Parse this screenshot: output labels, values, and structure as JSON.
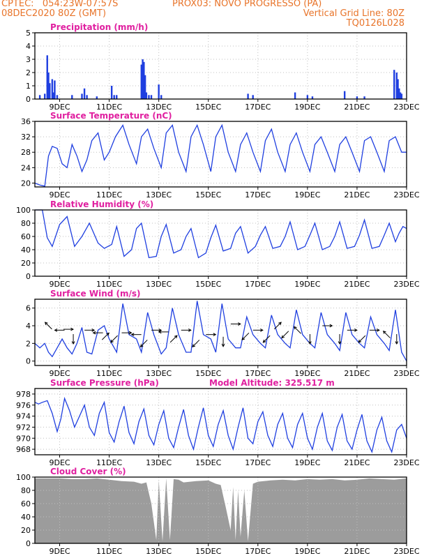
{
  "header": {
    "line1_left": "CPTEC:   054:23W-07:57S",
    "line1_mid": "PROX03: NOVO PROGRESSO (PA)",
    "line2_left": "08DEC2020 80Z (GMT)",
    "line2_right": "Vertical Grid Line: 80Z",
    "line3_right": "TQ0126L028"
  },
  "colors": {
    "header": "#e8742a",
    "title": "#e020a0",
    "series": "#1f3fe0",
    "cloud": "#9c9c9c",
    "grid": "#bfbfbf"
  },
  "x_ticks": [
    "9DEC",
    "11DEC",
    "13DEC",
    "15DEC",
    "17DEC",
    "19DEC",
    "21DEC",
    "23DEC"
  ],
  "x_tick_days": [
    9,
    11,
    13,
    15,
    17,
    19,
    21,
    23
  ],
  "chart_data": [
    {
      "type": "bar",
      "title": "Precipitation (mm/h)",
      "ylim": [
        0,
        5
      ],
      "yticks": [
        0,
        1,
        2,
        3,
        4,
        5
      ],
      "x_unit": "day of Dec 2020",
      "x": [
        8.2,
        8.4,
        8.5,
        8.55,
        8.6,
        8.7,
        8.75,
        8.8,
        8.9,
        9.5,
        9.9,
        10.0,
        10.1,
        10.5,
        11.1,
        11.2,
        11.3,
        12.3,
        12.35,
        12.4,
        12.45,
        12.5,
        12.6,
        12.7,
        13.0,
        13.1,
        16.6,
        16.8,
        18.5,
        19.0,
        19.2,
        20.5,
        21.0,
        21.3,
        22.5,
        22.6,
        22.65,
        22.7,
        22.75,
        22.8
      ],
      "values": [
        0.3,
        0.4,
        3.3,
        2.0,
        1.2,
        1.5,
        0.5,
        1.4,
        0.3,
        0.3,
        0.4,
        0.8,
        0.3,
        0.2,
        1.0,
        0.3,
        0.3,
        2.6,
        3.0,
        2.8,
        1.8,
        0.5,
        0.3,
        0.3,
        1.1,
        0.3,
        0.4,
        0.3,
        0.5,
        0.3,
        0.2,
        0.6,
        0.2,
        0.2,
        2.2,
        2.0,
        1.5,
        0.8,
        0.5,
        0.4
      ]
    },
    {
      "type": "line",
      "title": "Surface Temperature (nC)",
      "ylim": [
        19,
        36
      ],
      "yticks": [
        20,
        24,
        28,
        32,
        36
      ],
      "series": [
        {
          "x": [
            8.0,
            8.2,
            8.4,
            8.55,
            8.7,
            8.9,
            9.1,
            9.3,
            9.5,
            9.7,
            9.9,
            10.1,
            10.3,
            10.55,
            10.8,
            11.0,
            11.25,
            11.55,
            11.8,
            12.1,
            12.3,
            12.55,
            12.8,
            13.1,
            13.3,
            13.55,
            13.8,
            14.1,
            14.3,
            14.55,
            14.8,
            15.1,
            15.3,
            15.55,
            15.8,
            16.1,
            16.3,
            16.55,
            16.8,
            17.1,
            17.3,
            17.55,
            17.8,
            18.1,
            18.3,
            18.55,
            18.8,
            19.1,
            19.3,
            19.55,
            19.8,
            20.1,
            20.3,
            20.55,
            20.8,
            21.1,
            21.3,
            21.55,
            21.8,
            22.1,
            22.3,
            22.55,
            22.8,
            23.0
          ],
          "y": [
            20,
            19.5,
            19.2,
            27,
            29.5,
            29,
            25,
            24,
            30,
            27,
            23,
            26,
            31,
            33,
            26,
            28,
            32,
            35,
            30,
            25,
            32,
            34,
            29,
            24,
            33,
            35,
            28,
            23,
            32,
            35,
            30,
            23,
            32,
            35,
            28,
            23,
            30,
            33,
            28,
            23,
            31,
            34,
            28,
            23,
            30,
            33,
            28,
            23,
            30,
            32,
            28,
            23,
            30,
            32,
            28,
            23,
            31,
            32,
            28,
            23,
            31,
            32,
            28,
            28
          ]
        }
      ]
    },
    {
      "type": "line",
      "title": "Relative Humidity (%)",
      "ylim": [
        0,
        100
      ],
      "yticks": [
        0,
        20,
        40,
        60,
        80,
        100
      ],
      "series": [
        {
          "x": [
            8.0,
            8.3,
            8.5,
            8.7,
            9.0,
            9.3,
            9.6,
            9.9,
            10.2,
            10.55,
            10.8,
            11.1,
            11.3,
            11.6,
            11.9,
            12.1,
            12.3,
            12.6,
            12.9,
            13.1,
            13.3,
            13.6,
            13.9,
            14.1,
            14.3,
            14.6,
            14.9,
            15.1,
            15.3,
            15.6,
            15.9,
            16.1,
            16.3,
            16.6,
            16.9,
            17.1,
            17.3,
            17.6,
            17.9,
            18.1,
            18.3,
            18.6,
            18.9,
            19.1,
            19.3,
            19.6,
            19.9,
            20.1,
            20.3,
            20.6,
            20.9,
            21.1,
            21.3,
            21.6,
            21.9,
            22.1,
            22.3,
            22.55,
            22.7,
            22.85,
            23.0
          ],
          "y": [
            100,
            100,
            58,
            45,
            78,
            90,
            45,
            60,
            80,
            50,
            42,
            48,
            75,
            30,
            40,
            72,
            80,
            28,
            30,
            60,
            78,
            35,
            40,
            60,
            72,
            28,
            35,
            58,
            77,
            38,
            42,
            65,
            75,
            35,
            45,
            62,
            75,
            42,
            45,
            60,
            82,
            40,
            45,
            62,
            80,
            40,
            45,
            60,
            82,
            42,
            45,
            62,
            85,
            42,
            45,
            62,
            80,
            52,
            65,
            75,
            72
          ]
        }
      ]
    },
    {
      "type": "line",
      "title": "Surface Wind (m/s)",
      "ylim": [
        -0.5,
        7
      ],
      "yticks": [
        0,
        2,
        4,
        6
      ],
      "series": [
        {
          "x": [
            8.0,
            8.2,
            8.4,
            8.55,
            8.7,
            8.9,
            9.1,
            9.3,
            9.5,
            9.7,
            9.9,
            10.1,
            10.3,
            10.55,
            10.8,
            11.0,
            11.3,
            11.55,
            11.8,
            12.1,
            12.3,
            12.55,
            12.8,
            13.1,
            13.3,
            13.55,
            13.8,
            14.1,
            14.3,
            14.55,
            14.8,
            15.1,
            15.3,
            15.55,
            15.8,
            16.1,
            16.3,
            16.55,
            16.8,
            17.1,
            17.3,
            17.55,
            17.8,
            18.1,
            18.3,
            18.55,
            18.8,
            19.1,
            19.3,
            19.55,
            19.8,
            20.1,
            20.3,
            20.55,
            20.8,
            21.1,
            21.3,
            21.55,
            21.8,
            22.1,
            22.3,
            22.55,
            22.8,
            23.0
          ],
          "y": [
            2,
            1.5,
            2,
            1,
            0.5,
            1.5,
            2.5,
            1.5,
            0.8,
            2,
            3.8,
            1,
            0.8,
            3.5,
            4,
            2.5,
            1,
            6.5,
            3,
            2.5,
            1,
            5.5,
            3,
            0.8,
            1.5,
            6,
            3,
            1,
            1,
            6.8,
            3,
            2.5,
            1,
            6.5,
            2.5,
            1.5,
            1.5,
            5,
            3,
            2,
            1.5,
            5.2,
            3,
            2,
            1.5,
            5.8,
            3,
            2,
            1.5,
            5.5,
            3,
            2,
            1.2,
            5.5,
            3,
            2,
            1.5,
            5,
            3,
            2,
            1.2,
            5.8,
            1,
            0
          ]
        }
      ],
      "wind_vectors": [
        {
          "x": 8.55,
          "y": 4.0,
          "dir": "up-left"
        },
        {
          "x": 9.0,
          "y": 3.5,
          "dir": "left"
        },
        {
          "x": 9.35,
          "y": 3.6,
          "dir": "right"
        },
        {
          "x": 9.55,
          "y": 2.5,
          "dir": "down"
        },
        {
          "x": 10.2,
          "y": 3.5,
          "dir": "right"
        },
        {
          "x": 10.55,
          "y": 3.2,
          "dir": "left"
        },
        {
          "x": 10.85,
          "y": 2.8,
          "dir": "up-right"
        },
        {
          "x": 11.2,
          "y": 2.5,
          "dir": "down-left"
        },
        {
          "x": 11.7,
          "y": 3.2,
          "dir": "right"
        },
        {
          "x": 12.1,
          "y": 3.0,
          "dir": "left"
        },
        {
          "x": 12.4,
          "y": 2.0,
          "dir": "down-left"
        },
        {
          "x": 12.9,
          "y": 3.5,
          "dir": "right"
        },
        {
          "x": 13.2,
          "y": 3.3,
          "dir": "left"
        },
        {
          "x": 13.6,
          "y": 2.5,
          "dir": "up-right"
        },
        {
          "x": 14.1,
          "y": 3.5,
          "dir": "right"
        },
        {
          "x": 14.5,
          "y": 2.0,
          "dir": "down-left"
        },
        {
          "x": 15.1,
          "y": 3.0,
          "dir": "right"
        },
        {
          "x": 15.6,
          "y": 2.2,
          "dir": "down"
        },
        {
          "x": 16.1,
          "y": 4.2,
          "dir": "right"
        },
        {
          "x": 16.5,
          "y": 2.8,
          "dir": "down-left"
        },
        {
          "x": 17.0,
          "y": 3.5,
          "dir": "right"
        },
        {
          "x": 17.35,
          "y": 2.5,
          "dir": "down-left"
        },
        {
          "x": 17.8,
          "y": 4.0,
          "dir": "up-right"
        },
        {
          "x": 18.1,
          "y": 3.0,
          "dir": "down-left"
        },
        {
          "x": 18.6,
          "y": 3.5,
          "dir": "up-left"
        },
        {
          "x": 19.1,
          "y": 2.5,
          "dir": "down"
        },
        {
          "x": 19.8,
          "y": 4.0,
          "dir": "right"
        },
        {
          "x": 20.3,
          "y": 2.5,
          "dir": "down"
        },
        {
          "x": 20.8,
          "y": 3.5,
          "dir": "right"
        },
        {
          "x": 21.2,
          "y": 2.5,
          "dir": "down-left"
        },
        {
          "x": 21.7,
          "y": 3.5,
          "dir": "right"
        },
        {
          "x": 22.2,
          "y": 3.0,
          "dir": "up-left"
        },
        {
          "x": 22.6,
          "y": 2.5,
          "dir": "down"
        }
      ]
    },
    {
      "type": "line",
      "title": "Surface Pressure (hPa)",
      "annotation": "Model Altitude: 325.517 m",
      "ylim": [
        967,
        979
      ],
      "yticks": [
        968,
        970,
        972,
        974,
        976,
        978
      ],
      "series": [
        {
          "x": [
            8.0,
            8.15,
            8.3,
            8.5,
            8.7,
            8.9,
            9.05,
            9.2,
            9.4,
            9.6,
            9.8,
            10.0,
            10.2,
            10.4,
            10.6,
            10.8,
            11.0,
            11.2,
            11.4,
            11.6,
            11.8,
            12.0,
            12.2,
            12.4,
            12.6,
            12.8,
            13.0,
            13.2,
            13.4,
            13.6,
            13.8,
            14.0,
            14.2,
            14.4,
            14.6,
            14.8,
            15.0,
            15.2,
            15.4,
            15.6,
            15.8,
            16.0,
            16.2,
            16.4,
            16.6,
            16.8,
            17.0,
            17.2,
            17.4,
            17.6,
            17.8,
            18.0,
            18.2,
            18.4,
            18.6,
            18.8,
            19.0,
            19.2,
            19.4,
            19.6,
            19.8,
            20.0,
            20.2,
            20.4,
            20.6,
            20.8,
            21.0,
            21.2,
            21.4,
            21.6,
            21.8,
            22.0,
            22.2,
            22.4,
            22.6,
            22.8,
            23.0
          ],
          "y": [
            976.5,
            976.2,
            976.5,
            976.8,
            974.5,
            971.2,
            973.5,
            977.2,
            975,
            972,
            974,
            976,
            972,
            970.5,
            974.5,
            976.5,
            971,
            969.3,
            973,
            975.8,
            971,
            969,
            973,
            975.3,
            970.5,
            968.8,
            972.5,
            975,
            970,
            968.3,
            972,
            975.2,
            970.5,
            968,
            972,
            975.5,
            970.5,
            968.5,
            972.5,
            975,
            970.5,
            968,
            972,
            975.5,
            970,
            969,
            973,
            974.8,
            970.5,
            968.5,
            972.5,
            974.5,
            970,
            968.3,
            972.5,
            974.5,
            970,
            968,
            972,
            974.5,
            969.5,
            967.8,
            972,
            974.3,
            969.5,
            968,
            971.5,
            974.3,
            969.5,
            967.5,
            971.5,
            973.8,
            969.5,
            967.5,
            971.5,
            972.5,
            970
          ]
        }
      ]
    },
    {
      "type": "area",
      "title": "Cloud Cover (%)",
      "ylim": [
        0,
        100
      ],
      "yticks": [
        0,
        20,
        40,
        60,
        80,
        100
      ],
      "series": [
        {
          "x": [
            8.0,
            8.5,
            9.0,
            9.5,
            10.0,
            10.5,
            11.0,
            11.5,
            12.0,
            12.3,
            12.5,
            12.7,
            12.9,
            13.0,
            13.15,
            13.3,
            13.45,
            13.6,
            13.8,
            14.0,
            14.5,
            15.0,
            15.3,
            15.5,
            15.7,
            15.9,
            16.0,
            16.1,
            16.2,
            16.3,
            16.45,
            16.6,
            16.8,
            17.0,
            17.5,
            18.0,
            18.5,
            19.0,
            19.5,
            20.0,
            20.5,
            21.0,
            21.5,
            22.0,
            22.5,
            23.0
          ],
          "y": [
            98,
            98,
            98,
            97,
            97,
            98,
            96,
            94,
            93,
            90,
            92,
            60,
            5,
            95,
            3,
            98,
            5,
            97,
            96,
            92,
            94,
            95,
            90,
            88,
            55,
            20,
            85,
            5,
            80,
            10,
            80,
            3,
            90,
            93,
            95,
            96,
            95,
            97,
            96,
            97,
            95,
            96,
            98,
            97,
            96,
            98
          ]
        }
      ]
    }
  ]
}
